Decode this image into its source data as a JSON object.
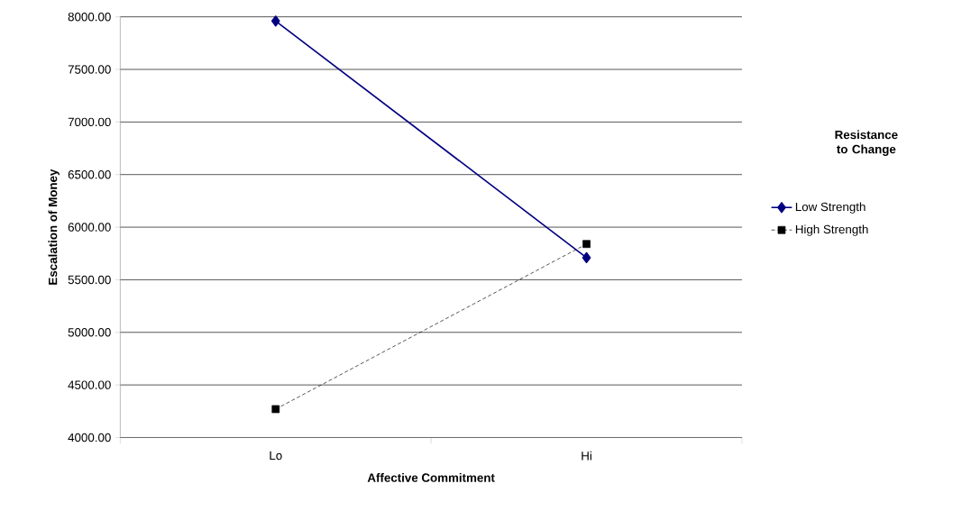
{
  "chart_data": {
    "type": "line",
    "xlabel": "Affective Commitment",
    "ylabel": "Escalation of Money",
    "legend_title": "Resistance to Change",
    "categories": [
      "Lo",
      "Hi"
    ],
    "series": [
      {
        "name": "Low Strength",
        "color": "#000080",
        "values": [
          7960,
          5710
        ],
        "marker": "diamond",
        "line_style": "solid"
      },
      {
        "name": "High Strength",
        "color": "#000000",
        "values": [
          4270,
          5840
        ],
        "marker": "square",
        "line_style": "dashed"
      }
    ],
    "ylim": [
      4000,
      8000
    ],
    "yticks": [
      {
        "value": 4000,
        "label": "4000.00"
      },
      {
        "value": 4500,
        "label": "4500.00"
      },
      {
        "value": 5000,
        "label": "5000.00"
      },
      {
        "value": 5500,
        "label": "5500.00"
      },
      {
        "value": 6000,
        "label": "6000.00"
      },
      {
        "value": 6500,
        "label": "6500.00"
      },
      {
        "value": 7000,
        "label": "7000.00"
      },
      {
        "value": 7500,
        "label": "7500.00"
      },
      {
        "value": 8000,
        "label": "8000.00"
      }
    ],
    "grid": "y",
    "legend": "right"
  }
}
